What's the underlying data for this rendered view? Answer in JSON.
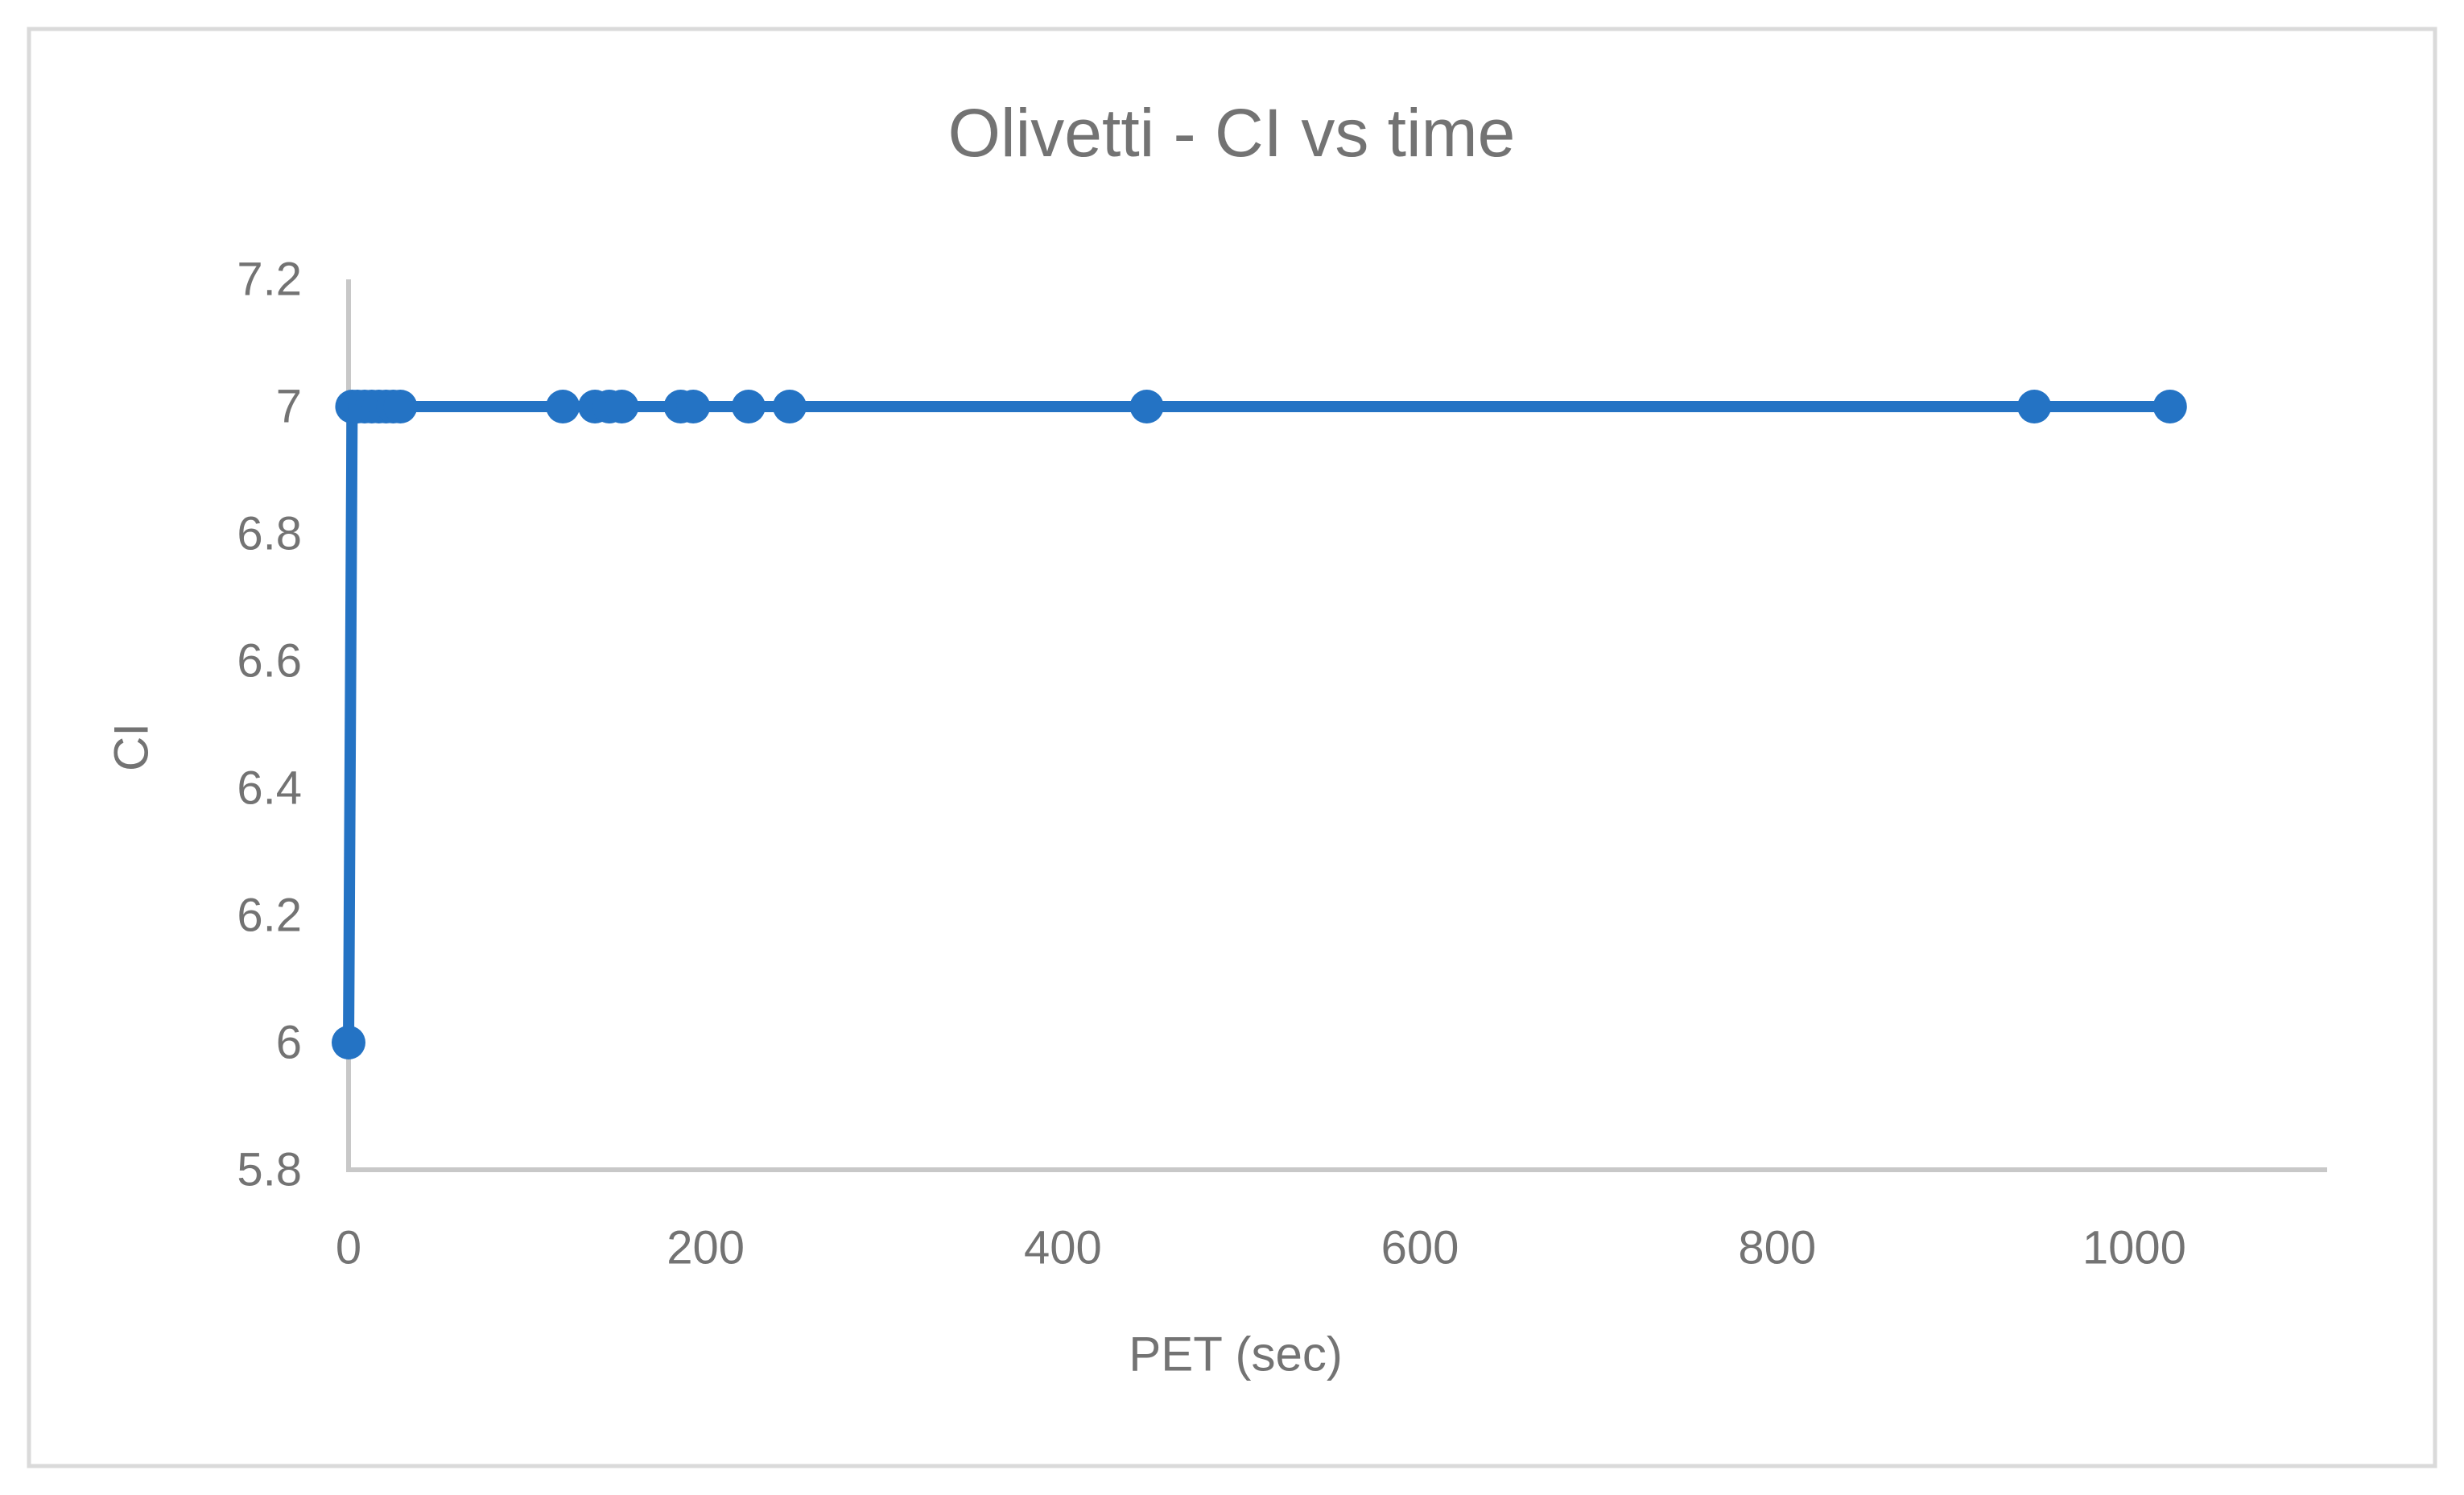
{
  "chart_data": {
    "type": "line",
    "title": "Olivetti - CI vs time",
    "xlabel": "PET (sec)",
    "ylabel": "CI",
    "xlim": [
      0,
      1108
    ],
    "ylim": [
      5.8,
      7.2
    ],
    "x_ticks": [
      0,
      200,
      400,
      600,
      800,
      1000
    ],
    "y_ticks": [
      5.8,
      6.0,
      6.2,
      6.4,
      6.6,
      6.8,
      7.0,
      7.2
    ],
    "grid": false,
    "legend": "none",
    "series": [
      {
        "name": "CI",
        "marker": "circle",
        "points": [
          {
            "x": 0,
            "y": 6
          },
          {
            "x": 2,
            "y": 7
          },
          {
            "x": 5,
            "y": 7
          },
          {
            "x": 9,
            "y": 7
          },
          {
            "x": 13,
            "y": 7
          },
          {
            "x": 17,
            "y": 7
          },
          {
            "x": 21,
            "y": 7
          },
          {
            "x": 25,
            "y": 7
          },
          {
            "x": 29,
            "y": 7
          },
          {
            "x": 120,
            "y": 7
          },
          {
            "x": 138,
            "y": 7
          },
          {
            "x": 146,
            "y": 7
          },
          {
            "x": 153,
            "y": 7
          },
          {
            "x": 186,
            "y": 7
          },
          {
            "x": 193,
            "y": 7
          },
          {
            "x": 224,
            "y": 7
          },
          {
            "x": 247,
            "y": 7
          },
          {
            "x": 447,
            "y": 7
          },
          {
            "x": 944,
            "y": 7
          },
          {
            "x": 1020,
            "y": 7
          }
        ]
      }
    ],
    "colors": {
      "series": "#2473C4",
      "text": "#737373",
      "axis_line": "#C8C8C8",
      "frame_border": "#DADADA",
      "background": "#FFFFFF"
    }
  }
}
